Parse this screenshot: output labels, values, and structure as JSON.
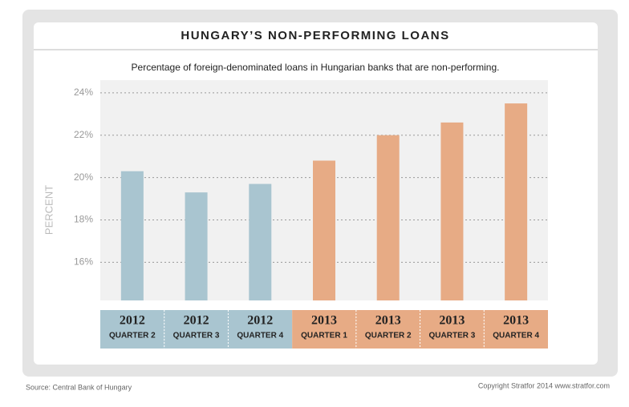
{
  "chart_data": {
    "type": "bar",
    "title": "HUNGARY’S NON-PERFORMING LOANS",
    "subtitle": "Percentage of foreign-denominated loans in Hungarian banks that are non-performing.",
    "y_label": "PERCENT",
    "categories": [
      {
        "year": "2012",
        "quarter": "QUARTER 2"
      },
      {
        "year": "2012",
        "quarter": "QUARTER 3"
      },
      {
        "year": "2012",
        "quarter": "QUARTER 4"
      },
      {
        "year": "2013",
        "quarter": "QUARTER 1"
      },
      {
        "year": "2013",
        "quarter": "QUARTER 2"
      },
      {
        "year": "2013",
        "quarter": "QUARTER 3"
      },
      {
        "year": "2013",
        "quarter": "QUARTER 4"
      }
    ],
    "values": [
      20.3,
      19.3,
      19.7,
      20.8,
      22.0,
      22.6,
      23.5
    ],
    "colors": [
      "#a9c5d0",
      "#a9c5d0",
      "#a9c5d0",
      "#e7ab85",
      "#e7ab85",
      "#e7ab85",
      "#e7ab85"
    ],
    "ylim": [
      14.2,
      24.6
    ],
    "yticks": [
      {
        "value": 16,
        "label": "16%"
      },
      {
        "value": 18,
        "label": "18%"
      },
      {
        "value": 20,
        "label": "20%"
      },
      {
        "value": 22,
        "label": "22%"
      },
      {
        "value": 24,
        "label": "24%"
      }
    ],
    "grid": true,
    "source": "Source: Central Bank of Hungary",
    "copyright": "Copyright Stratfor 2014 www.stratfor.com"
  }
}
